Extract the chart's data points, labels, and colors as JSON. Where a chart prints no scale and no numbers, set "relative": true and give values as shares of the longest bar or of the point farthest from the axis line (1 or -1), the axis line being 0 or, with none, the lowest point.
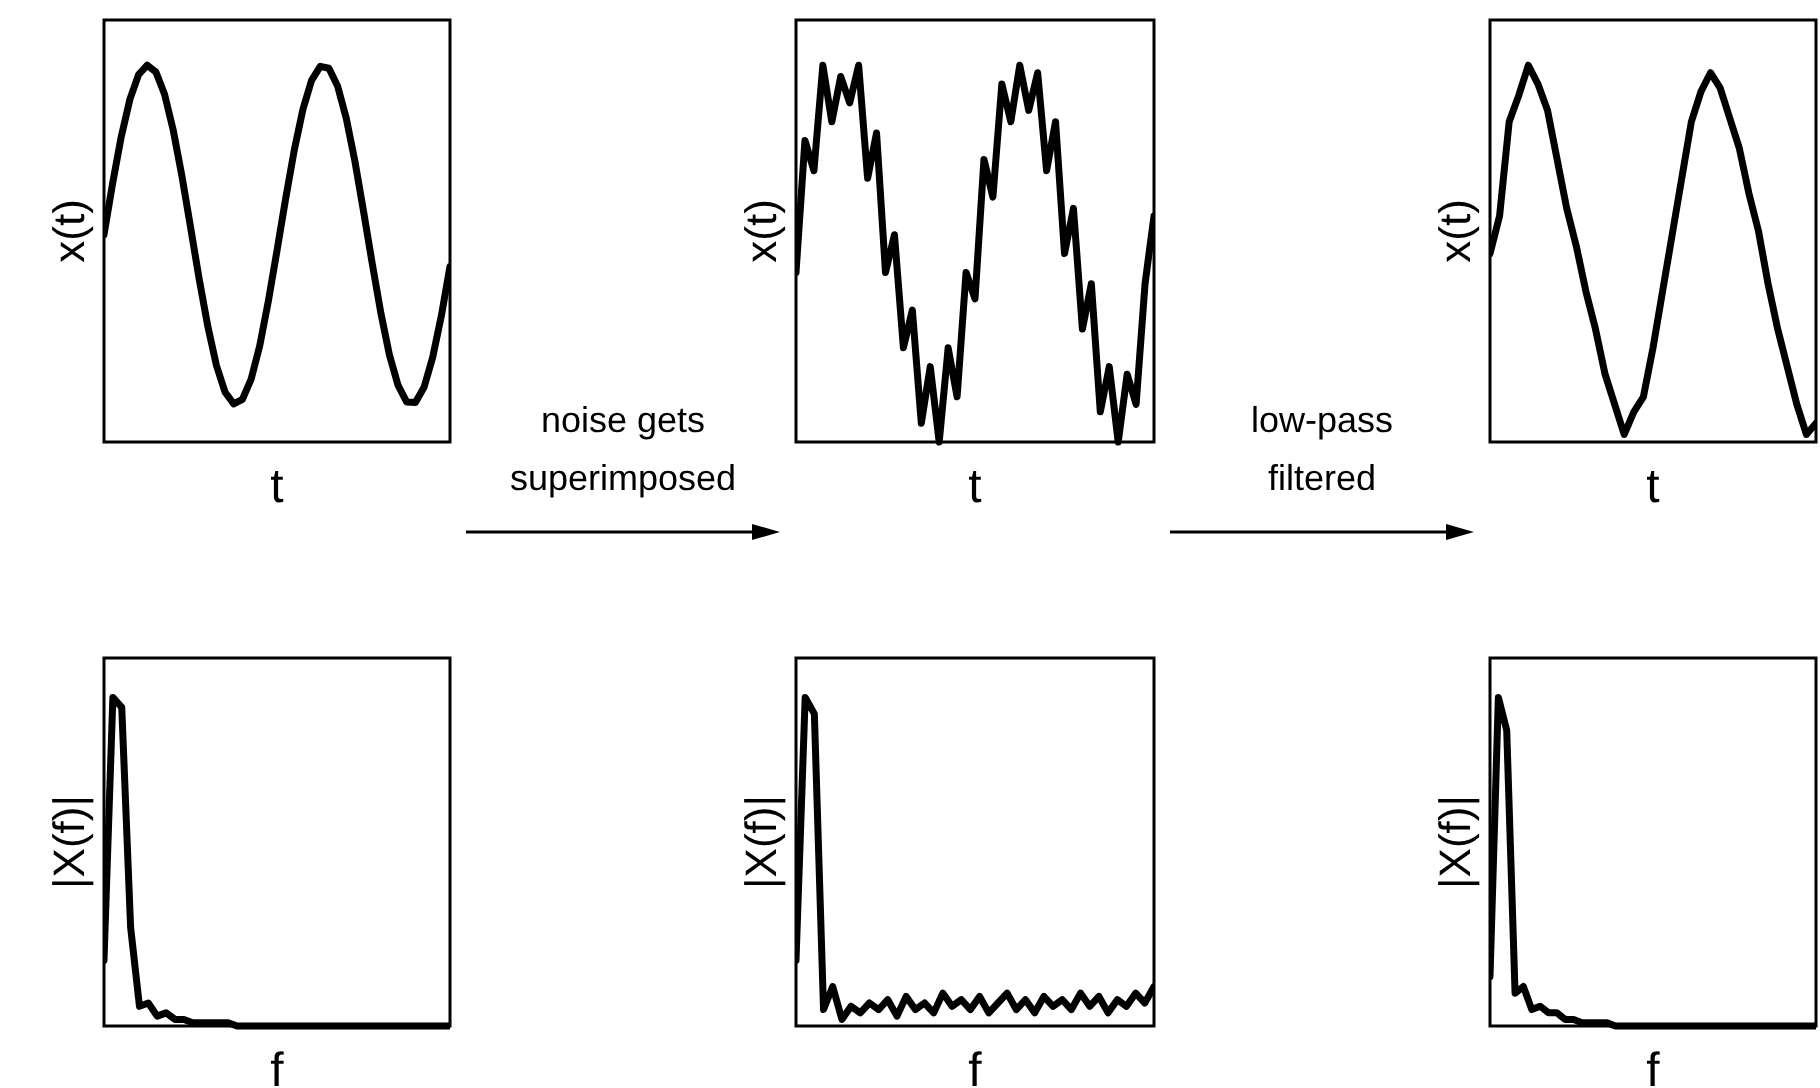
{
  "chart_data": [
    {
      "type": "line",
      "relative": true,
      "xlabel": "t",
      "ylabel": "x(t)",
      "annotations": [
        "noise gets superimposed"
      ],
      "categories": [
        null,
        null,
        null,
        null,
        null,
        null,
        null,
        null,
        null,
        null,
        null,
        null,
        null,
        null,
        null,
        null,
        null,
        null,
        null,
        null,
        null,
        null,
        null,
        null,
        null,
        null,
        null,
        null,
        null,
        null,
        null,
        null,
        null,
        null,
        null,
        null,
        null,
        null,
        null,
        null,
        null
      ],
      "series": [
        {
          "color": "#000000",
          "values": [
            0.55,
            0.687,
            0.811,
            0.91,
            0.975,
            1.0,
            0.982,
            0.923,
            0.828,
            0.707,
            0.571,
            0.433,
            0.307,
            0.203,
            0.132,
            0.101,
            0.113,
            0.166,
            0.255,
            0.374,
            0.508,
            0.646,
            0.775,
            0.883,
            0.96,
            0.997,
            0.992,
            0.945,
            0.86,
            0.746,
            0.613,
            0.475,
            0.343,
            0.231,
            0.15,
            0.106,
            0.105,
            0.145,
            0.225,
            0.335,
            0.466
          ]
        }
      ]
    },
    {
      "type": "line",
      "relative": true,
      "xlabel": "t",
      "ylabel": "x(t)",
      "annotations": [
        "low-pass filtered"
      ],
      "categories": [
        null,
        null,
        null,
        null,
        null,
        null,
        null,
        null,
        null,
        null,
        null,
        null,
        null,
        null,
        null,
        null,
        null,
        null,
        null,
        null,
        null,
        null,
        null,
        null,
        null,
        null,
        null,
        null,
        null,
        null,
        null,
        null,
        null,
        null,
        null,
        null,
        null,
        null,
        null,
        null,
        null
      ],
      "series": [
        {
          "color": "#000000",
          "values": [
            0.45,
            0.8,
            0.72,
            1.0,
            0.85,
            0.97,
            0.9,
            1.0,
            0.7,
            0.82,
            0.45,
            0.55,
            0.25,
            0.35,
            0.05,
            0.2,
            0.0,
            0.25,
            0.12,
            0.45,
            0.38,
            0.75,
            0.65,
            0.95,
            0.85,
            1.0,
            0.88,
            0.98,
            0.72,
            0.85,
            0.5,
            0.62,
            0.3,
            0.42,
            0.08,
            0.2,
            0.0,
            0.18,
            0.1,
            0.42,
            0.6
          ]
        }
      ]
    },
    {
      "type": "line",
      "relative": true,
      "xlabel": "t",
      "ylabel": "x(t)",
      "categories": [
        null,
        null,
        null,
        null,
        null,
        null,
        null,
        null,
        null,
        null,
        null,
        null,
        null,
        null,
        null,
        null,
        null,
        null,
        null,
        null,
        null,
        null,
        null,
        null,
        null,
        null,
        null,
        null,
        null,
        null,
        null,
        null,
        null,
        null,
        null
      ],
      "series": [
        {
          "color": "#000000",
          "values": [
            0.5,
            0.6,
            0.85,
            0.92,
            1.0,
            0.95,
            0.88,
            0.75,
            0.62,
            0.52,
            0.4,
            0.3,
            0.18,
            0.1,
            0.02,
            0.08,
            0.12,
            0.25,
            0.4,
            0.55,
            0.7,
            0.85,
            0.93,
            0.98,
            0.94,
            0.86,
            0.78,
            0.66,
            0.56,
            0.42,
            0.3,
            0.2,
            0.1,
            0.02,
            0.05
          ]
        }
      ]
    },
    {
      "type": "line",
      "relative": true,
      "xlabel": "f",
      "ylabel": "|X(f)|",
      "categories": [
        null,
        null,
        null,
        null,
        null,
        null,
        null,
        null,
        null,
        null,
        null,
        null,
        null,
        null,
        null,
        null,
        null,
        null,
        null,
        null,
        null,
        null,
        null,
        null,
        null,
        null,
        null,
        null,
        null,
        null,
        null,
        null,
        null,
        null,
        null,
        null,
        null,
        null,
        null,
        null
      ],
      "series": [
        {
          "color": "#000000",
          "values": [
            0.2,
            1.0,
            0.97,
            0.3,
            0.06,
            0.07,
            0.03,
            0.04,
            0.02,
            0.02,
            0.01,
            0.01,
            0.01,
            0.01,
            0.01,
            0,
            0,
            0,
            0,
            0,
            0,
            0,
            0,
            0,
            0,
            0,
            0,
            0,
            0,
            0,
            0,
            0,
            0,
            0,
            0,
            0,
            0,
            0,
            0,
            0
          ]
        }
      ]
    },
    {
      "type": "line",
      "relative": true,
      "xlabel": "f",
      "ylabel": "|X(f)|",
      "categories": [
        null,
        null,
        null,
        null,
        null,
        null,
        null,
        null,
        null,
        null,
        null,
        null,
        null,
        null,
        null,
        null,
        null,
        null,
        null,
        null,
        null,
        null,
        null,
        null,
        null,
        null,
        null,
        null,
        null,
        null,
        null,
        null,
        null,
        null,
        null,
        null,
        null,
        null,
        null,
        null
      ],
      "series": [
        {
          "color": "#000000",
          "values": [
            0.2,
            1.0,
            0.95,
            0.05,
            0.12,
            0.02,
            0.06,
            0.04,
            0.07,
            0.05,
            0.08,
            0.03,
            0.09,
            0.05,
            0.07,
            0.04,
            0.1,
            0.06,
            0.08,
            0.05,
            0.09,
            0.04,
            0.07,
            0.1,
            0.05,
            0.08,
            0.04,
            0.09,
            0.06,
            0.08,
            0.05,
            0.1,
            0.06,
            0.09,
            0.04,
            0.08,
            0.06,
            0.1,
            0.07,
            0.12
          ]
        }
      ]
    },
    {
      "type": "line",
      "relative": true,
      "xlabel": "f",
      "ylabel": "|X(f)|",
      "categories": [
        null,
        null,
        null,
        null,
        null,
        null,
        null,
        null,
        null,
        null,
        null,
        null,
        null,
        null,
        null,
        null,
        null,
        null,
        null,
        null,
        null,
        null,
        null,
        null,
        null,
        null,
        null,
        null,
        null,
        null,
        null,
        null,
        null,
        null,
        null,
        null,
        null,
        null,
        null,
        null
      ],
      "series": [
        {
          "color": "#000000",
          "values": [
            0.15,
            1.0,
            0.9,
            0.1,
            0.12,
            0.05,
            0.06,
            0.04,
            0.04,
            0.02,
            0.02,
            0.01,
            0.01,
            0.01,
            0.01,
            0,
            0,
            0,
            0,
            0,
            0,
            0,
            0,
            0,
            0,
            0,
            0,
            0,
            0,
            0,
            0,
            0,
            0,
            0,
            0,
            0,
            0,
            0,
            0,
            0
          ]
        }
      ]
    }
  ]
}
